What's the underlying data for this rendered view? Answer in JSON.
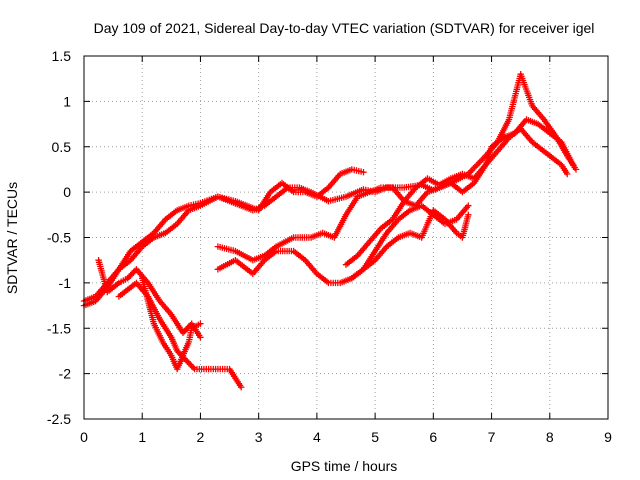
{
  "chart_data": {
    "type": "line",
    "title": "Day 109 of 2021, Sidereal Day-to-day VTEC variation (SDTVAR) for receiver igel",
    "xlabel": "GPS time / hours",
    "ylabel": "SDTVAR / TECUs",
    "xlim": [
      0,
      9
    ],
    "ylim": [
      -2.5,
      1.5
    ],
    "xticks": [
      0,
      1,
      2,
      3,
      4,
      5,
      6,
      7,
      8,
      9
    ],
    "yticks": [
      -2.5,
      -2,
      -1.5,
      -1,
      -0.5,
      0,
      0.5,
      1,
      1.5
    ],
    "xtick_labels": [
      "0",
      "1",
      "2",
      "3",
      "4",
      "5",
      "6",
      "7",
      "8",
      "9"
    ],
    "ytick_labels": [
      "-2.5",
      "-2",
      "-1.5",
      "-1",
      "-0.5",
      "0",
      "0.5",
      "1",
      "1.5"
    ],
    "grid": true,
    "marker": "plus",
    "color": "#ff0000",
    "series": [
      {
        "points": [
          [
            0.0,
            -1.25
          ],
          [
            0.2,
            -1.2
          ],
          [
            0.4,
            -1.05
          ],
          [
            0.6,
            -0.85
          ],
          [
            0.8,
            -0.65
          ],
          [
            1.0,
            -0.55
          ],
          [
            1.2,
            -0.45
          ],
          [
            1.4,
            -0.3
          ],
          [
            1.6,
            -0.2
          ],
          [
            1.8,
            -0.15
          ],
          [
            2.0,
            -0.12
          ],
          [
            2.3,
            -0.05
          ],
          [
            2.5,
            -0.1
          ],
          [
            2.7,
            -0.15
          ],
          [
            2.9,
            -0.2
          ],
          [
            3.1,
            -0.15
          ],
          [
            3.3,
            -0.05
          ],
          [
            3.5,
            0.05
          ],
          [
            3.7,
            0.05
          ],
          [
            3.9,
            0.0
          ],
          [
            4.2,
            -0.1
          ],
          [
            4.5,
            -0.05
          ],
          [
            4.8,
            0.03
          ],
          [
            5.0,
            0.0
          ],
          [
            5.2,
            0.05
          ],
          [
            5.5,
            0.05
          ],
          [
            5.8,
            0.08
          ],
          [
            6.0,
            0.02
          ],
          [
            6.3,
            0.1
          ],
          [
            6.6,
            0.2
          ],
          [
            6.9,
            0.4
          ],
          [
            7.1,
            0.55
          ],
          [
            7.3,
            0.8
          ],
          [
            7.5,
            1.3
          ],
          [
            7.7,
            0.95
          ],
          [
            7.9,
            0.8
          ],
          [
            8.1,
            0.62
          ],
          [
            8.3,
            0.4
          ],
          [
            8.45,
            0.25
          ]
        ]
      },
      {
        "points": [
          [
            0.0,
            -1.2
          ],
          [
            0.2,
            -1.15
          ],
          [
            0.4,
            -1.0
          ],
          [
            0.6,
            -0.85
          ],
          [
            0.8,
            -0.75
          ],
          [
            1.0,
            -0.6
          ],
          [
            1.2,
            -0.5
          ],
          [
            1.4,
            -0.45
          ],
          [
            1.6,
            -0.35
          ],
          [
            1.8,
            -0.2
          ],
          [
            2.0,
            -0.15
          ],
          [
            2.3,
            -0.05
          ],
          [
            2.6,
            -0.1
          ],
          [
            2.8,
            -0.15
          ],
          [
            3.0,
            -0.2
          ],
          [
            3.2,
            0.0
          ],
          [
            3.4,
            0.1
          ],
          [
            3.6,
            0.0
          ],
          [
            3.8,
            0.0
          ],
          [
            4.0,
            -0.05
          ],
          [
            4.2,
            0.05
          ],
          [
            4.4,
            0.2
          ],
          [
            4.6,
            0.25
          ],
          [
            4.8,
            0.22
          ]
        ]
      },
      {
        "points": [
          [
            0.25,
            -0.75
          ],
          [
            0.4,
            -1.1
          ],
          [
            0.6,
            -1.0
          ],
          [
            0.75,
            -0.95
          ],
          [
            0.9,
            -0.85
          ],
          [
            1.1,
            -1.0
          ],
          [
            1.3,
            -1.2
          ],
          [
            1.5,
            -1.35
          ],
          [
            1.7,
            -1.55
          ],
          [
            1.85,
            -1.45
          ],
          [
            2.0,
            -1.6
          ]
        ]
      },
      {
        "points": [
          [
            0.6,
            -1.15
          ],
          [
            0.9,
            -1.0
          ],
          [
            1.1,
            -1.15
          ],
          [
            1.3,
            -1.4
          ],
          [
            1.5,
            -1.6
          ],
          [
            1.6,
            -1.75
          ],
          [
            1.75,
            -1.85
          ],
          [
            1.9,
            -1.95
          ],
          [
            2.1,
            -1.95
          ],
          [
            2.3,
            -1.95
          ],
          [
            2.5,
            -1.95
          ],
          [
            2.6,
            -2.05
          ],
          [
            2.7,
            -2.15
          ]
        ]
      },
      {
        "points": [
          [
            1.0,
            -0.95
          ],
          [
            1.1,
            -1.2
          ],
          [
            1.2,
            -1.45
          ],
          [
            1.35,
            -1.65
          ],
          [
            1.5,
            -1.8
          ],
          [
            1.6,
            -1.95
          ],
          [
            1.7,
            -1.8
          ],
          [
            1.8,
            -1.65
          ],
          [
            1.85,
            -1.5
          ],
          [
            2.0,
            -1.45
          ]
        ]
      },
      {
        "points": [
          [
            2.3,
            -0.6
          ],
          [
            2.6,
            -0.65
          ],
          [
            2.9,
            -0.75
          ],
          [
            3.1,
            -0.7
          ],
          [
            3.3,
            -0.6
          ],
          [
            3.6,
            -0.5
          ],
          [
            3.9,
            -0.5
          ],
          [
            4.1,
            -0.45
          ],
          [
            4.3,
            -0.5
          ],
          [
            4.5,
            -0.25
          ],
          [
            4.7,
            -0.05
          ],
          [
            4.9,
            0.0
          ],
          [
            5.1,
            0.05
          ],
          [
            5.3,
            0.05
          ],
          [
            5.5,
            -0.1
          ],
          [
            5.7,
            -0.15
          ],
          [
            5.9,
            0.0
          ],
          [
            6.1,
            0.05
          ],
          [
            6.3,
            0.1
          ],
          [
            6.5,
            0.0
          ],
          [
            6.7,
            0.1
          ],
          [
            6.9,
            0.3
          ],
          [
            7.1,
            0.45
          ],
          [
            7.3,
            0.6
          ],
          [
            7.5,
            0.7
          ],
          [
            7.7,
            0.55
          ],
          [
            7.9,
            0.45
          ],
          [
            8.0,
            0.4
          ],
          [
            8.2,
            0.3
          ],
          [
            8.3,
            0.2
          ]
        ]
      },
      {
        "points": [
          [
            2.3,
            -0.85
          ],
          [
            2.6,
            -0.75
          ],
          [
            2.9,
            -0.9
          ],
          [
            3.1,
            -0.75
          ],
          [
            3.3,
            -0.65
          ],
          [
            3.6,
            -0.65
          ],
          [
            3.8,
            -0.75
          ],
          [
            4.0,
            -0.9
          ],
          [
            4.2,
            -1.0
          ],
          [
            4.4,
            -1.0
          ],
          [
            4.6,
            -0.95
          ],
          [
            4.8,
            -0.85
          ],
          [
            5.0,
            -0.65
          ],
          [
            5.2,
            -0.45
          ],
          [
            5.4,
            -0.3
          ],
          [
            5.6,
            -0.2
          ],
          [
            5.8,
            -0.15
          ],
          [
            6.0,
            -0.25
          ],
          [
            6.2,
            -0.35
          ],
          [
            6.4,
            -0.3
          ],
          [
            6.6,
            -0.15
          ]
        ]
      },
      {
        "points": [
          [
            4.5,
            -0.8
          ],
          [
            4.7,
            -0.7
          ],
          [
            4.9,
            -0.55
          ],
          [
            5.1,
            -0.4
          ],
          [
            5.3,
            -0.3
          ],
          [
            5.5,
            -0.1
          ],
          [
            5.7,
            0.05
          ],
          [
            5.9,
            0.15
          ],
          [
            6.1,
            0.08
          ],
          [
            6.3,
            0.15
          ],
          [
            6.5,
            0.2
          ],
          [
            6.7,
            0.15
          ],
          [
            6.9,
            0.3
          ],
          [
            7.0,
            0.5
          ],
          [
            7.2,
            0.6
          ],
          [
            7.4,
            0.65
          ],
          [
            7.6,
            0.8
          ],
          [
            7.8,
            0.75
          ],
          [
            8.0,
            0.65
          ],
          [
            8.2,
            0.55
          ],
          [
            8.4,
            0.3
          ]
        ]
      },
      {
        "points": [
          [
            4.6,
            -0.95
          ],
          [
            4.8,
            -0.85
          ],
          [
            5.0,
            -0.75
          ],
          [
            5.2,
            -0.6
          ],
          [
            5.4,
            -0.5
          ],
          [
            5.6,
            -0.45
          ],
          [
            5.8,
            -0.5
          ],
          [
            6.0,
            -0.2
          ],
          [
            6.2,
            -0.3
          ],
          [
            6.4,
            -0.45
          ],
          [
            6.5,
            -0.5
          ],
          [
            6.6,
            -0.25
          ]
        ]
      }
    ]
  }
}
